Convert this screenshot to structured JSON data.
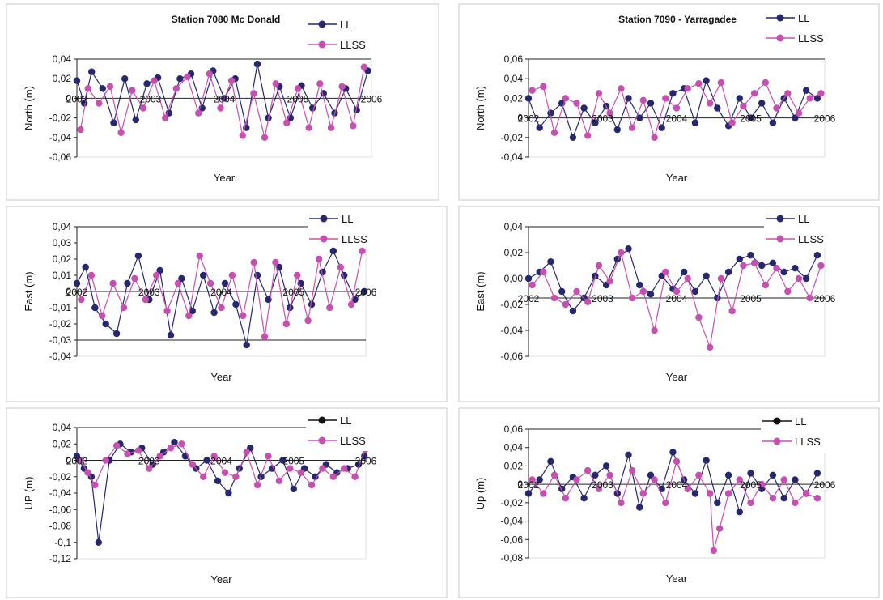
{
  "figure": {
    "colors": {
      "ll": "#27276e",
      "llss": "#c550b0",
      "ll_up_legend_marker": "#111111",
      "axis": "#222222",
      "panel_border": "#c8c8c8",
      "gridline": "#222222"
    }
  },
  "chart_data": [
    {
      "type": "line",
      "title": "Station 7080 Mc Donald",
      "xlabel": "Year",
      "ylabel": "North (m)",
      "xlim": [
        2002,
        2006
      ],
      "ylim": [
        -0.06,
        0.04
      ],
      "yticks": [
        "0,04",
        "0,02",
        "0",
        "-0,02",
        "-0,04",
        "-0,06"
      ],
      "ytick_values": [
        0.04,
        0.02,
        0,
        -0.02,
        -0.04,
        -0.06
      ],
      "xticks": [
        "2002",
        "2003",
        "2004",
        "2005",
        "2006"
      ],
      "xtick_values": [
        2002,
        2003,
        2004,
        2005,
        2006
      ],
      "x_axis_at": 0,
      "legend": [
        "LL",
        "LLSS"
      ],
      "series": [
        {
          "name": "LL",
          "x": [
            2002.0,
            2002.1,
            2002.2,
            2002.35,
            2002.5,
            2002.65,
            2002.8,
            2002.95,
            2003.1,
            2003.25,
            2003.4,
            2003.55,
            2003.7,
            2003.85,
            2004.0,
            2004.15,
            2004.3,
            2004.45,
            2004.6,
            2004.75,
            2004.9,
            2005.05,
            2005.2,
            2005.35,
            2005.5,
            2005.65,
            2005.8,
            2005.95
          ],
          "y": [
            0.018,
            -0.005,
            0.027,
            0.01,
            -0.025,
            0.02,
            -0.022,
            0.015,
            0.021,
            -0.015,
            0.02,
            0.025,
            -0.01,
            0.028,
            0.0,
            0.02,
            -0.03,
            0.035,
            -0.02,
            0.012,
            -0.02,
            0.013,
            -0.01,
            0.005,
            -0.015,
            0.01,
            -0.012,
            0.028
          ]
        },
        {
          "name": "LLSS",
          "x": [
            2002.05,
            2002.15,
            2002.3,
            2002.45,
            2002.6,
            2002.75,
            2002.9,
            2003.05,
            2003.2,
            2003.35,
            2003.5,
            2003.65,
            2003.8,
            2003.95,
            2004.1,
            2004.25,
            2004.4,
            2004.55,
            2004.7,
            2004.85,
            2005.0,
            2005.15,
            2005.3,
            2005.45,
            2005.6,
            2005.75,
            2005.9
          ],
          "y": [
            -0.032,
            0.01,
            -0.005,
            0.012,
            -0.035,
            0.008,
            -0.01,
            0.018,
            -0.02,
            0.01,
            0.022,
            -0.015,
            0.025,
            -0.01,
            0.018,
            -0.038,
            0.005,
            -0.04,
            0.015,
            -0.025,
            0.01,
            -0.03,
            0.015,
            -0.03,
            0.012,
            -0.028,
            0.032
          ]
        }
      ]
    },
    {
      "type": "line",
      "title": "Station 7090 - Yarragadee",
      "xlabel": "Year",
      "ylabel": "North (m)",
      "xlim": [
        2002,
        2006
      ],
      "ylim": [
        -0.04,
        0.06
      ],
      "yticks": [
        "0,06",
        "0,04",
        "0,02",
        "0",
        "-0,02",
        "-0,04"
      ],
      "ytick_values": [
        0.06,
        0.04,
        0.02,
        0,
        -0.02,
        -0.04
      ],
      "xticks": [
        "2002",
        "2003",
        "2004",
        "2005",
        "2006"
      ],
      "xtick_values": [
        2002,
        2003,
        2004,
        2005,
        2006
      ],
      "x_axis_at": 0,
      "legend": [
        "LL",
        "LLSS"
      ],
      "series": [
        {
          "name": "LL",
          "x": [
            2002.0,
            2002.15,
            2002.3,
            2002.45,
            2002.6,
            2002.75,
            2002.9,
            2003.05,
            2003.2,
            2003.35,
            2003.5,
            2003.65,
            2003.8,
            2003.95,
            2004.1,
            2004.25,
            2004.4,
            2004.55,
            2004.7,
            2004.85,
            2005.0,
            2005.15,
            2005.3,
            2005.45,
            2005.6,
            2005.75,
            2005.9
          ],
          "y": [
            0.02,
            -0.01,
            0.005,
            0.015,
            -0.02,
            0.01,
            -0.005,
            0.012,
            -0.012,
            0.02,
            0.0,
            0.015,
            -0.01,
            0.025,
            0.03,
            -0.005,
            0.038,
            0.01,
            -0.008,
            0.02,
            0.0,
            0.015,
            -0.005,
            0.02,
            0.0,
            0.028,
            0.02
          ]
        },
        {
          "name": "LLSS",
          "x": [
            2002.05,
            2002.2,
            2002.35,
            2002.5,
            2002.65,
            2002.8,
            2002.95,
            2003.1,
            2003.25,
            2003.4,
            2003.55,
            2003.7,
            2003.85,
            2004.0,
            2004.15,
            2004.3,
            2004.45,
            2004.6,
            2004.75,
            2004.9,
            2005.05,
            2005.2,
            2005.35,
            2005.5,
            2005.65,
            2005.8,
            2005.95
          ],
          "y": [
            0.028,
            0.032,
            -0.015,
            0.02,
            0.015,
            -0.018,
            0.025,
            0.005,
            0.03,
            -0.01,
            0.018,
            -0.02,
            0.02,
            0.01,
            0.03,
            0.035,
            0.015,
            0.036,
            -0.005,
            0.012,
            0.025,
            0.036,
            0.01,
            0.025,
            0.005,
            0.02,
            0.025
          ]
        }
      ]
    },
    {
      "type": "line",
      "title": "",
      "xlabel": "Year",
      "ylabel": "East (m)",
      "xlim": [
        2002,
        2006
      ],
      "ylim": [
        -0.04,
        0.04
      ],
      "yticks": [
        "0,04",
        "0,03",
        "0,02",
        "0,01",
        "0",
        "-0,01",
        "-0,02",
        "-0,03",
        "-0,04"
      ],
      "ytick_values": [
        0.04,
        0.03,
        0.02,
        0.01,
        0,
        -0.01,
        -0.02,
        -0.03,
        -0.04
      ],
      "xticks": [
        "2002",
        "2003",
        "2004",
        "2005",
        "2006"
      ],
      "xtick_values": [
        2002,
        2003,
        2004,
        2005,
        2006
      ],
      "x_axis_at": 0,
      "legend": [
        "LL",
        "LLSS"
      ],
      "series": [
        {
          "name": "LL",
          "x": [
            2002.0,
            2002.12,
            2002.25,
            2002.4,
            2002.55,
            2002.7,
            2002.85,
            2003.0,
            2003.15,
            2003.3,
            2003.45,
            2003.6,
            2003.75,
            2003.9,
            2004.05,
            2004.2,
            2004.35,
            2004.5,
            2004.65,
            2004.8,
            2004.95,
            2005.1,
            2005.25,
            2005.4,
            2005.55,
            2005.7,
            2005.85,
            2005.98
          ],
          "y": [
            0.005,
            0.015,
            -0.01,
            -0.02,
            -0.026,
            0.005,
            0.022,
            -0.005,
            0.013,
            -0.027,
            0.008,
            -0.012,
            0.01,
            -0.013,
            0.005,
            -0.008,
            -0.033,
            0.01,
            -0.005,
            0.015,
            -0.01,
            0.005,
            -0.008,
            0.012,
            0.025,
            0.01,
            -0.005,
            0.0
          ]
        },
        {
          "name": "LLSS",
          "x": [
            2002.06,
            2002.2,
            2002.35,
            2002.5,
            2002.65,
            2002.8,
            2002.95,
            2003.1,
            2003.25,
            2003.4,
            2003.55,
            2003.7,
            2003.85,
            2004.0,
            2004.15,
            2004.3,
            2004.45,
            2004.6,
            2004.75,
            2004.9,
            2005.05,
            2005.2,
            2005.35,
            2005.5,
            2005.65,
            2005.8,
            2005.95
          ],
          "y": [
            -0.005,
            0.01,
            -0.015,
            0.005,
            -0.01,
            0.008,
            -0.005,
            0.01,
            -0.012,
            0.005,
            -0.015,
            0.022,
            0.005,
            -0.01,
            0.01,
            -0.015,
            0.018,
            -0.028,
            0.018,
            -0.02,
            0.01,
            -0.018,
            0.02,
            -0.01,
            0.015,
            -0.008,
            0.025
          ]
        }
      ]
    },
    {
      "type": "line",
      "title": "",
      "xlabel": "Year",
      "ylabel": "East (m)",
      "xlim": [
        2002,
        2006
      ],
      "ylim": [
        -0.06,
        0.04
      ],
      "yticks": [
        "0,04",
        "0,02",
        "0,00",
        "-0,02",
        "-0,04",
        "-0,06"
      ],
      "ytick_values": [
        0.04,
        0.02,
        0.0,
        -0.02,
        -0.04,
        -0.06
      ],
      "xticks": [
        "2002",
        "2003",
        "2004",
        "2005",
        "2006"
      ],
      "xtick_values": [
        2002,
        2003,
        2004,
        2005,
        2006
      ],
      "x_axis_at": -0.015,
      "legend": [
        "LL",
        "LLSS"
      ],
      "series": [
        {
          "name": "LL",
          "x": [
            2002.0,
            2002.15,
            2002.3,
            2002.45,
            2002.6,
            2002.75,
            2002.9,
            2003.05,
            2003.2,
            2003.35,
            2003.5,
            2003.65,
            2003.8,
            2003.95,
            2004.1,
            2004.25,
            2004.4,
            2004.55,
            2004.7,
            2004.85,
            2005.0,
            2005.15,
            2005.3,
            2005.45,
            2005.6,
            2005.75,
            2005.9
          ],
          "y": [
            0.0,
            0.005,
            0.013,
            -0.01,
            -0.025,
            -0.015,
            0.002,
            -0.005,
            0.015,
            0.023,
            -0.005,
            -0.012,
            0.002,
            -0.008,
            0.005,
            -0.01,
            0.002,
            -0.015,
            0.005,
            0.015,
            0.018,
            0.01,
            0.012,
            0.005,
            0.008,
            0.0,
            0.018
          ]
        },
        {
          "name": "LLSS",
          "x": [
            2002.05,
            2002.2,
            2002.35,
            2002.5,
            2002.65,
            2002.8,
            2002.95,
            2003.1,
            2003.25,
            2003.4,
            2003.55,
            2003.7,
            2003.85,
            2004.0,
            2004.15,
            2004.3,
            2004.45,
            2004.6,
            2004.75,
            2004.9,
            2005.05,
            2005.2,
            2005.35,
            2005.5,
            2005.65,
            2005.8,
            2005.95
          ],
          "y": [
            -0.005,
            0.005,
            -0.015,
            -0.02,
            -0.01,
            -0.018,
            0.01,
            -0.002,
            0.02,
            -0.015,
            -0.01,
            -0.04,
            0.005,
            -0.01,
            0.0,
            -0.03,
            -0.053,
            0.0,
            -0.025,
            0.01,
            0.012,
            -0.005,
            0.008,
            -0.01,
            0.0,
            -0.015,
            0.01
          ]
        }
      ]
    },
    {
      "type": "line",
      "title": "",
      "xlabel": "Year",
      "ylabel": "UP (m)",
      "xlim": [
        2002,
        2006
      ],
      "ylim": [
        -0.12,
        0.04
      ],
      "yticks": [
        "0,04",
        "0,02",
        "0",
        "-0,02",
        "-0,04",
        "-0,06",
        "-0,08",
        "-0,1",
        "-0,12"
      ],
      "ytick_values": [
        0.04,
        0.02,
        0,
        -0.02,
        -0.04,
        -0.06,
        -0.08,
        -0.1,
        -0.12
      ],
      "xticks": [
        "2002",
        "2003",
        "2004",
        "2005",
        "2006"
      ],
      "xtick_values": [
        2002,
        2003,
        2004,
        2005,
        2006
      ],
      "x_axis_at": 0,
      "legend": [
        "LL",
        "LLSS"
      ],
      "series": [
        {
          "name": "LL",
          "x": [
            2002.0,
            2002.1,
            2002.2,
            2002.3,
            2002.45,
            2002.6,
            2002.75,
            2002.9,
            2003.05,
            2003.2,
            2003.35,
            2003.5,
            2003.65,
            2003.8,
            2003.95,
            2004.1,
            2004.25,
            2004.4,
            2004.55,
            2004.7,
            2004.85,
            2005.0,
            2005.15,
            2005.3,
            2005.45,
            2005.6,
            2005.75,
            2005.9,
            2005.98
          ],
          "y": [
            0.005,
            -0.01,
            -0.02,
            -0.1,
            0.0,
            0.02,
            0.01,
            0.015,
            -0.005,
            0.01,
            0.022,
            0.005,
            -0.01,
            0.0,
            -0.025,
            -0.04,
            -0.01,
            0.015,
            -0.02,
            -0.01,
            0.0,
            -0.035,
            -0.01,
            -0.02,
            -0.005,
            -0.015,
            -0.01,
            -0.005,
            0.005
          ]
        },
        {
          "name": "LLSS",
          "x": [
            2002.05,
            2002.15,
            2002.25,
            2002.4,
            2002.55,
            2002.7,
            2002.85,
            2003.0,
            2003.15,
            2003.3,
            2003.45,
            2003.6,
            2003.75,
            2003.9,
            2004.05,
            2004.2,
            2004.35,
            2004.5,
            2004.65,
            2004.8,
            2004.95,
            2005.1,
            2005.25,
            2005.4,
            2005.55,
            2005.7,
            2005.85,
            2005.99
          ],
          "y": [
            0.0,
            -0.015,
            -0.03,
            0.0,
            0.018,
            0.008,
            0.012,
            -0.01,
            0.005,
            0.015,
            0.02,
            -0.005,
            -0.02,
            0.005,
            -0.015,
            -0.02,
            0.01,
            -0.03,
            0.005,
            -0.025,
            -0.01,
            -0.015,
            -0.03,
            -0.01,
            -0.02,
            -0.01,
            -0.02,
            0.013
          ]
        }
      ]
    },
    {
      "type": "line",
      "title": "",
      "xlabel": "Year",
      "ylabel": "Up (m)",
      "xlim": [
        2002,
        2006
      ],
      "ylim": [
        -0.08,
        0.06
      ],
      "yticks": [
        "0,06",
        "0,04",
        "0,02",
        "0",
        "-0,02",
        "-0,04",
        "-0,06",
        "-0,08"
      ],
      "ytick_values": [
        0.06,
        0.04,
        0.02,
        0,
        -0.02,
        -0.04,
        -0.06,
        -0.08
      ],
      "xticks": [
        "2002",
        "2003",
        "2004",
        "2005",
        "2006"
      ],
      "xtick_values": [
        2002,
        2003,
        2004,
        2005,
        2006
      ],
      "x_axis_at": 0,
      "legend": [
        "LL",
        "LLSS"
      ],
      "series": [
        {
          "name": "LL",
          "x": [
            2002.0,
            2002.15,
            2002.3,
            2002.45,
            2002.6,
            2002.75,
            2002.9,
            2003.05,
            2003.2,
            2003.35,
            2003.5,
            2003.65,
            2003.8,
            2003.95,
            2004.1,
            2004.25,
            2004.4,
            2004.55,
            2004.7,
            2004.85,
            2005.0,
            2005.15,
            2005.3,
            2005.45,
            2005.6,
            2005.75,
            2005.9
          ],
          "y": [
            -0.01,
            0.005,
            0.025,
            -0.005,
            0.008,
            -0.015,
            0.01,
            0.02,
            -0.01,
            0.032,
            -0.025,
            0.01,
            -0.005,
            0.035,
            0.005,
            -0.01,
            0.026,
            -0.02,
            0.01,
            -0.03,
            0.012,
            -0.005,
            0.01,
            -0.015,
            0.005,
            -0.01,
            0.012
          ]
        },
        {
          "name": "LLSS",
          "x": [
            2002.05,
            2002.2,
            2002.35,
            2002.5,
            2002.65,
            2002.8,
            2002.95,
            2003.1,
            2003.25,
            2003.4,
            2003.55,
            2003.7,
            2003.85,
            2004.0,
            2004.15,
            2004.3,
            2004.45,
            2004.5,
            2004.58,
            2004.7,
            2004.85,
            2005.0,
            2005.15,
            2005.3,
            2005.45,
            2005.6,
            2005.75,
            2005.9
          ],
          "y": [
            0.005,
            -0.01,
            0.01,
            -0.015,
            0.005,
            0.015,
            -0.005,
            0.01,
            -0.02,
            0.015,
            -0.01,
            0.005,
            -0.02,
            0.025,
            -0.005,
            0.01,
            -0.01,
            -0.072,
            -0.048,
            -0.01,
            0.005,
            -0.02,
            0.0,
            -0.015,
            0.005,
            -0.02,
            -0.01,
            -0.015
          ]
        }
      ]
    }
  ]
}
